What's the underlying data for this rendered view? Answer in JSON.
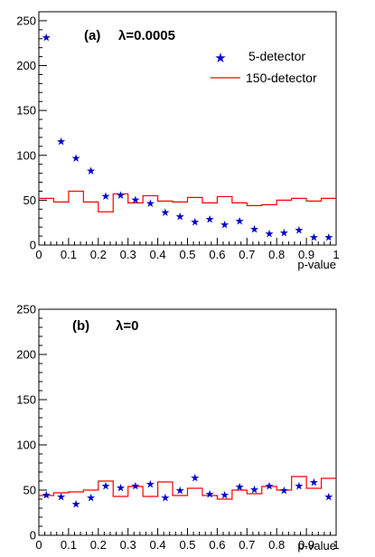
{
  "chart_data": [
    {
      "type": "scatter+histogram",
      "panel_label": "(a)",
      "parameter": "λ=0.0005",
      "xlabel": "p-value",
      "ylabel": "",
      "xlim": [
        0,
        1
      ],
      "ylim": [
        0,
        260
      ],
      "x_ticks": [
        "0",
        "0.1",
        "0.2",
        "0.3",
        "0.4",
        "0.5",
        "0.6",
        "0.7",
        "0.8",
        "0.9",
        "1"
      ],
      "y_ticks": [
        "0",
        "50",
        "100",
        "150",
        "200",
        "250"
      ],
      "legend_position": "top-right",
      "series": [
        {
          "name": "5-detector",
          "style": "stars",
          "color": "#0000cc",
          "x": [
            0.025,
            0.075,
            0.125,
            0.175,
            0.225,
            0.275,
            0.325,
            0.375,
            0.425,
            0.475,
            0.525,
            0.575,
            0.625,
            0.675,
            0.725,
            0.775,
            0.825,
            0.875,
            0.925,
            0.975
          ],
          "values": [
            232,
            116,
            97,
            83,
            55,
            56,
            51,
            47,
            37,
            32,
            26,
            29,
            23,
            27,
            18,
            13,
            14,
            17,
            9,
            9
          ]
        },
        {
          "name": "150-detector",
          "style": "step",
          "color": "#ff0000",
          "bin_edges": [
            0,
            0.05,
            0.1,
            0.15,
            0.2,
            0.25,
            0.3,
            0.35,
            0.4,
            0.45,
            0.5,
            0.55,
            0.6,
            0.65,
            0.7,
            0.75,
            0.8,
            0.85,
            0.9,
            0.95,
            1
          ],
          "values": [
            52,
            48,
            60,
            48,
            37,
            57,
            47,
            55,
            49,
            48,
            53,
            47,
            54,
            47,
            44,
            45,
            50,
            52,
            49,
            52
          ]
        }
      ]
    },
    {
      "type": "scatter+histogram",
      "panel_label": "(b)",
      "parameter": "λ=0",
      "xlabel": "p-value",
      "ylabel": "",
      "xlim": [
        0,
        1
      ],
      "ylim": [
        0,
        250
      ],
      "x_ticks": [
        "0",
        "0.1",
        "0.2",
        "0.3",
        "0.4",
        "0.5",
        "0.6",
        "0.7",
        "0.8",
        "0.9",
        "1"
      ],
      "y_ticks": [
        "0",
        "50",
        "100",
        "150",
        "200",
        "250"
      ],
      "series": [
        {
          "name": "5-detector",
          "style": "stars",
          "color": "#0000cc",
          "x": [
            0.025,
            0.075,
            0.125,
            0.175,
            0.225,
            0.275,
            0.325,
            0.375,
            0.425,
            0.475,
            0.525,
            0.575,
            0.625,
            0.675,
            0.725,
            0.775,
            0.825,
            0.875,
            0.925,
            0.975
          ],
          "values": [
            45,
            43,
            35,
            42,
            55,
            53,
            55,
            57,
            42,
            50,
            64,
            46,
            45,
            54,
            51,
            55,
            50,
            55,
            59,
            43
          ]
        },
        {
          "name": "150-detector",
          "style": "step",
          "color": "#ff0000",
          "bin_edges": [
            0,
            0.05,
            0.1,
            0.15,
            0.2,
            0.25,
            0.3,
            0.35,
            0.4,
            0.45,
            0.5,
            0.55,
            0.6,
            0.65,
            0.7,
            0.75,
            0.8,
            0.85,
            0.9,
            0.95,
            1
          ],
          "values": [
            44,
            47,
            48,
            50,
            60,
            43,
            54,
            43,
            59,
            44,
            52,
            44,
            40,
            50,
            46,
            54,
            50,
            65,
            52,
            63
          ]
        }
      ]
    }
  ]
}
